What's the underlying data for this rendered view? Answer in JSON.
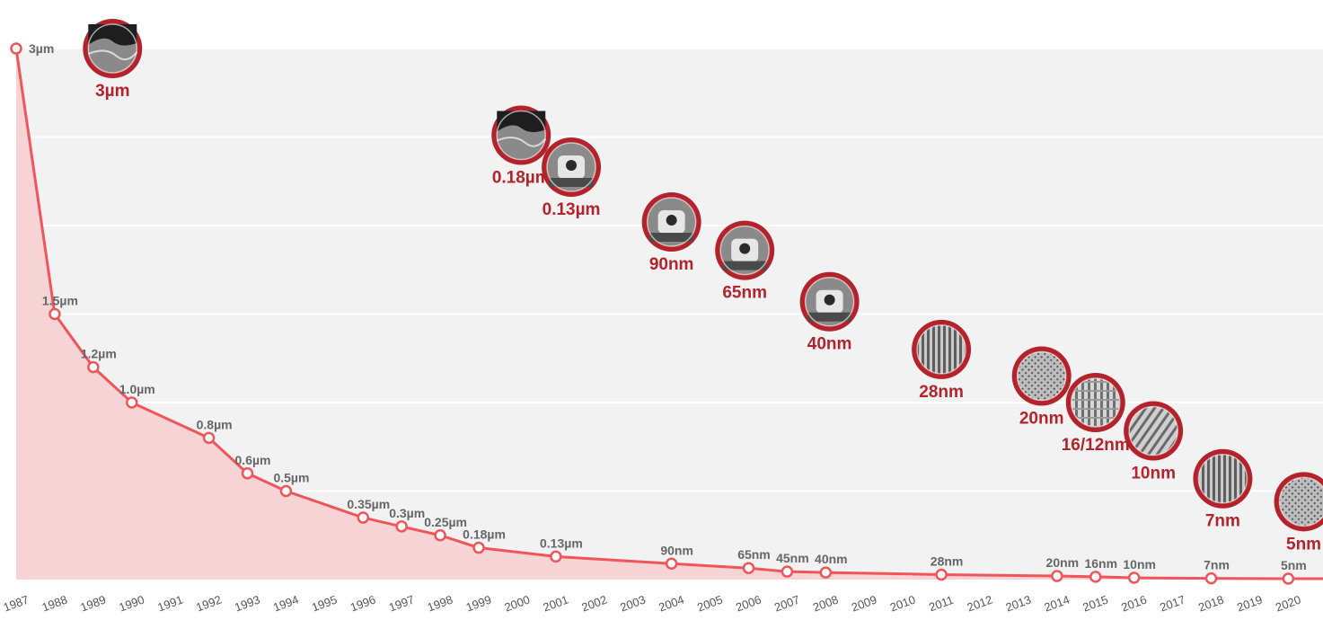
{
  "chart_data": {
    "type": "area",
    "x": [
      1987,
      1988,
      1989,
      1990,
      1992,
      1993,
      1994,
      1996,
      1997,
      1998,
      1999,
      2001,
      2004,
      2006,
      2007,
      2008,
      2011,
      2014,
      2015,
      2016,
      2018,
      2020
    ],
    "series": [
      {
        "values_nm": [
          3000,
          1500,
          1200,
          1000,
          800,
          600,
          500,
          350,
          300,
          250,
          180,
          130,
          90,
          65,
          45,
          40,
          28,
          20,
          16,
          10,
          7,
          5
        ],
        "point_labels": [
          "3µm",
          "1.5µm",
          "1.2µm",
          "1.0µm",
          "0.8µm",
          "0.6µm",
          "0.5µm",
          "0.35µm",
          "0.3µm",
          "0.25µm",
          "0.18µm",
          "0.13µm",
          "90nm",
          "65nm",
          "45nm",
          "40nm",
          "28nm",
          "20nm",
          "16nm",
          "10nm",
          "7nm",
          "5nm"
        ]
      }
    ],
    "x_ticks": [
      "1987",
      "1988",
      "1989",
      "1990",
      "1991",
      "1992",
      "1993",
      "1994",
      "1995",
      "1996",
      "1997",
      "1998",
      "1999",
      "2000",
      "2001",
      "2002",
      "2003",
      "2004",
      "2005",
      "2006",
      "2007",
      "2008",
      "2009",
      "2010",
      "2011",
      "2012",
      "2013",
      "2014",
      "2015",
      "2016",
      "2017",
      "2018",
      "2019",
      "2020"
    ],
    "xlim": [
      1987,
      2020.9
    ],
    "ylim": [
      0,
      3000
    ],
    "grid": true,
    "line_color": "#f0555a",
    "fill_color": "#f6d3d4",
    "plot_background": "#f2f2f2",
    "badges": [
      {
        "label": "3µm",
        "year": 1989.5,
        "level": 3000,
        "icon": "wafer-cross-section-icon"
      },
      {
        "label": "0.18µm",
        "year": 2000.1,
        "level": 2510,
        "icon": "wafer-cross-section-icon"
      },
      {
        "label": "0.13µm",
        "year": 2001.4,
        "level": 2330,
        "icon": "transistor-gate-icon"
      },
      {
        "label": "90nm",
        "year": 2004.0,
        "level": 2020,
        "icon": "transistor-gate-icon"
      },
      {
        "label": "65nm",
        "year": 2005.9,
        "level": 1860,
        "icon": "transistor-gate-icon"
      },
      {
        "label": "40nm",
        "year": 2008.1,
        "level": 1570,
        "icon": "transistor-gate-icon"
      },
      {
        "label": "28nm",
        "year": 2011.0,
        "level": 1300,
        "icon": "finfet-array-icon"
      },
      {
        "label": "20nm",
        "year": 2013.6,
        "level": 1150,
        "icon": "finfet-array-icon"
      },
      {
        "label": "16/12nm",
        "year": 2015.0,
        "level": 1000,
        "icon": "finfet-array-icon"
      },
      {
        "label": "10nm",
        "year": 2016.5,
        "level": 840,
        "icon": "finfet-array-icon"
      },
      {
        "label": "7nm",
        "year": 2018.3,
        "level": 570,
        "icon": "finfet-array-icon"
      },
      {
        "label": "5nm",
        "year": 2020.4,
        "level": 440,
        "icon": "finfet-array-icon"
      }
    ]
  }
}
